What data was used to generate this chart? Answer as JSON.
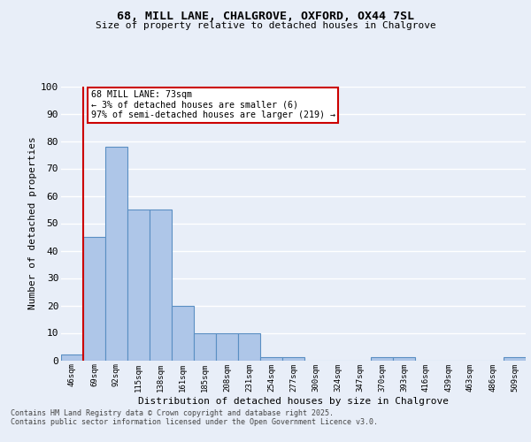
{
  "title": "68, MILL LANE, CHALGROVE, OXFORD, OX44 7SL",
  "subtitle": "Size of property relative to detached houses in Chalgrove",
  "xlabel": "Distribution of detached houses by size in Chalgrove",
  "ylabel": "Number of detached properties",
  "categories": [
    "46sqm",
    "69sqm",
    "92sqm",
    "115sqm",
    "138sqm",
    "161sqm",
    "185sqm",
    "208sqm",
    "231sqm",
    "254sqm",
    "277sqm",
    "300sqm",
    "324sqm",
    "347sqm",
    "370sqm",
    "393sqm",
    "416sqm",
    "439sqm",
    "463sqm",
    "486sqm",
    "509sqm"
  ],
  "values": [
    2,
    45,
    78,
    55,
    55,
    20,
    10,
    10,
    10,
    1,
    1,
    0,
    0,
    0,
    1,
    1,
    0,
    0,
    0,
    0,
    1
  ],
  "bar_color": "#aec6e8",
  "bar_edge_color": "#5a8fc3",
  "background_color": "#e8eef8",
  "grid_color": "#ffffff",
  "red_line_x": 0.5,
  "annotation_text": "68 MILL LANE: 73sqm\n← 3% of detached houses are smaller (6)\n97% of semi-detached houses are larger (219) →",
  "annotation_box_color": "#ffffff",
  "annotation_border_color": "#cc0000",
  "ylim": [
    0,
    100
  ],
  "yticks": [
    0,
    10,
    20,
    30,
    40,
    50,
    60,
    70,
    80,
    90,
    100
  ],
  "footer_line1": "Contains HM Land Registry data © Crown copyright and database right 2025.",
  "footer_line2": "Contains public sector information licensed under the Open Government Licence v3.0."
}
